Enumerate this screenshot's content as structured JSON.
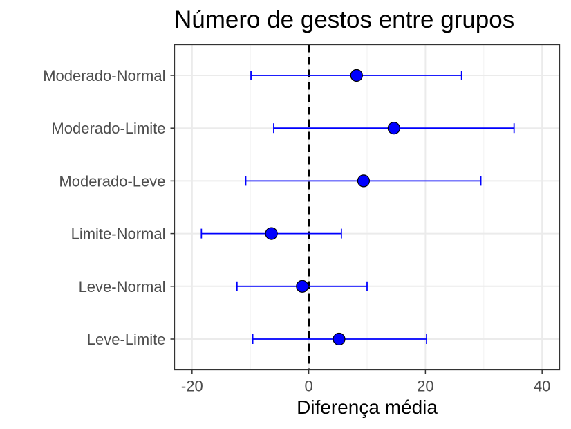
{
  "chart_data": {
    "type": "scatter",
    "subtype": "forest-plot",
    "title": "Número de gestos entre grupos",
    "xlabel": "Diferença média",
    "ylabel": "",
    "xlim": [
      -23,
      43
    ],
    "xticks": [
      -20,
      0,
      20,
      40
    ],
    "xtick_labels": [
      "-20",
      "0",
      "20",
      "40"
    ],
    "reference_line": 0,
    "grid": true,
    "categories": [
      "Moderado-Normal",
      "Moderado-Limite",
      "Moderado-Leve",
      "Limite-Normal",
      "Leve-Normal",
      "Leve-Limite"
    ],
    "estimates": [
      8.2,
      14.6,
      9.4,
      -6.4,
      -1.1,
      5.2
    ],
    "lower": [
      -9.9,
      -6.0,
      -10.8,
      -18.4,
      -12.3,
      -9.6
    ],
    "upper": [
      26.2,
      35.2,
      29.5,
      5.6,
      10.0,
      20.2
    ],
    "colors": {
      "point": "#0000ff",
      "interval": "#0000ff",
      "reference": "#000000"
    }
  }
}
